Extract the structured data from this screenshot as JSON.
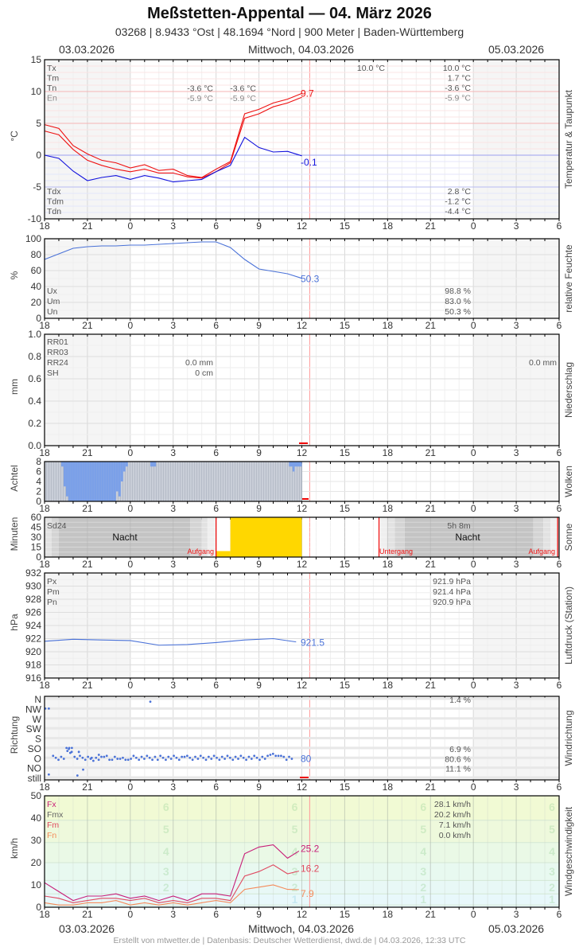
{
  "header": {
    "title": "Meßstetten-Appental  —  04. März 2026",
    "subtitle": "03268  |  8.9433 °Ost  |  48.1694 °Nord  |  900 Meter  |  Baden-Württemberg"
  },
  "date_bar": {
    "left": "03.03.2026",
    "center": "Mittwoch, 04.03.2026",
    "right": "05.03.2026"
  },
  "footer": "Erstellt von mtwetter.de | Datenbasis: Deutscher Wetterdienst, dwd.de | 04.03.2026, 12:33 UTC",
  "x_axis": {
    "ticks": [
      "18",
      "21",
      "0",
      "3",
      "6",
      "9",
      "12",
      "15",
      "18",
      "21",
      "0",
      "3",
      "6"
    ],
    "now_marker_hour": 12.55
  },
  "colors": {
    "temp": "#ee1111",
    "dewpoint": "#1111dd",
    "humidity": "#4a72d8",
    "sun": "#ffd700",
    "cloud": "#7ba0e8",
    "fx": "#c81e78",
    "fm": "#e04a60",
    "fn": "#f58a5a",
    "now": "#ff9999",
    "night_shade": "#f5f5f5"
  },
  "chart_data": [
    {
      "id": "temperature",
      "type": "line",
      "title": "Temperatur & Taupunkt",
      "ylabel": "°C",
      "ylim": [
        -10,
        15
      ],
      "yticks": [
        "15",
        "10",
        "5",
        "0",
        "-5",
        "-10"
      ],
      "x_hours_from_18": [
        0,
        1,
        2,
        3,
        4,
        5,
        6,
        7,
        8,
        9,
        10,
        11,
        12,
        13,
        14,
        15,
        16,
        17,
        18
      ],
      "series": [
        {
          "name": "Tx (upper temp)",
          "values": [
            4.8,
            4.2,
            1.5,
            0.2,
            -0.8,
            -1.2,
            -2.0,
            -1.5,
            -2.4,
            -2.2,
            -3.2,
            -3.5,
            -2.2,
            -1.0,
            6.5,
            7.2,
            8.2,
            8.8,
            9.7
          ]
        },
        {
          "name": "T",
          "values": [
            3.8,
            3.2,
            0.9,
            -0.8,
            -1.6,
            -2.2,
            -2.6,
            -2.2,
            -2.8,
            -2.8,
            -3.4,
            -3.6,
            -2.6,
            -1.2,
            5.8,
            6.5,
            7.6,
            8.2,
            9.1
          ]
        },
        {
          "name": "Td",
          "values": [
            0.0,
            -0.5,
            -2.5,
            -4.0,
            -3.5,
            -3.2,
            -3.8,
            -3.2,
            -3.6,
            -4.2,
            -4.0,
            -3.8,
            -2.6,
            -1.6,
            2.8,
            1.2,
            0.5,
            0.6,
            -0.1
          ]
        }
      ],
      "current_labels": {
        "temp": "9.7",
        "dewpoint": "-0.1"
      },
      "legend_top": [
        "Tx",
        "Tm",
        "Tn",
        "En"
      ],
      "legend_bottom": [
        "Tdx",
        "Tdm",
        "Tdn"
      ],
      "values_day1": {
        "Tn": "-3.6 °C",
        "En": "-5.9 °C"
      },
      "values_day1b": {
        "Tn": "-3.6 °C",
        "En": "-5.9 °C"
      },
      "values_day2_top": "10.0 °C",
      "values_summary": {
        "Tx": "10.0 °C",
        "Tm": "1.7 °C",
        "Tn": "-3.6 °C",
        "En": "-5.9 °C",
        "Tdx": "2.8 °C",
        "Tdm": "-1.2 °C",
        "Tdn": "-4.4 °C"
      },
      "side_label": "Temperatur & Taupunkt"
    },
    {
      "id": "humidity",
      "type": "line",
      "title": "relative Feuchte",
      "ylabel": "%",
      "ylim": [
        0,
        100
      ],
      "yticks": [
        "100",
        "80",
        "60",
        "40",
        "20",
        "0"
      ],
      "x_hours_from_18": [
        0,
        1,
        2,
        3,
        4,
        5,
        6,
        7,
        8,
        9,
        10,
        11,
        12,
        13,
        14,
        15,
        16,
        17,
        18
      ],
      "series": [
        {
          "name": "U",
          "values": [
            74,
            81,
            88,
            90,
            91,
            91,
            92,
            92,
            93,
            94,
            95,
            96,
            96,
            89,
            74,
            62,
            59,
            56,
            50.3
          ]
        }
      ],
      "current_label": "50.3",
      "legend": [
        "Ux",
        "Um",
        "Un"
      ],
      "values_summary": {
        "Ux": "98.8 %",
        "Um": "83.0 %",
        "Un": "50.3 %"
      },
      "side_label": "relative Feuchte"
    },
    {
      "id": "precipitation",
      "type": "bar",
      "title": "Niederschlag",
      "ylabel": "mm",
      "ylim": [
        0,
        1.0
      ],
      "yticks": [
        "1.0",
        "0.8",
        "0.6",
        "0.4",
        "0.2",
        "0.0"
      ],
      "legend": [
        "RR01",
        "RR03",
        "RR24",
        "SH"
      ],
      "values_day1": {
        "RR24": "0.0 mm",
        "SH": "0 cm"
      },
      "values_day2": {
        "RR24": "0.0 mm"
      },
      "side_label": "Niederschlag"
    },
    {
      "id": "clouds",
      "type": "bar",
      "title": "Wolken",
      "ylabel": "Achtel",
      "ylim": [
        0,
        8
      ],
      "yticks": [
        "8",
        "6",
        "4",
        "2",
        "0"
      ],
      "side_label": "Wolken"
    },
    {
      "id": "sunshine",
      "type": "bar",
      "title": "Sonne",
      "ylabel": "Minuten",
      "ylim": [
        0,
        60
      ],
      "yticks": [
        "60",
        "45",
        "30",
        "15",
        "0"
      ],
      "sunshine_minutes_by_hour": [
        {
          "hour": "6-7",
          "minutes": 9
        },
        {
          "hour": "7-12",
          "minutes": 60
        }
      ],
      "labels": {
        "sd24": "Sd24",
        "night1": "Nacht",
        "sunrise1": "Aufgang",
        "sunset": "Untergang",
        "duration": "5h 8m",
        "night2": "Nacht",
        "sunrise2": "Aufgang"
      },
      "side_label": "Sonne"
    },
    {
      "id": "pressure",
      "type": "line",
      "title": "Luftdruck (Station)",
      "ylabel": "hPa",
      "ylim": [
        916,
        932
      ],
      "yticks": [
        "932",
        "930",
        "928",
        "926",
        "924",
        "922",
        "920",
        "918",
        "916"
      ],
      "x_hours_from_18": [
        0,
        2,
        4,
        6,
        8,
        10,
        12,
        14,
        16,
        17.6
      ],
      "series": [
        {
          "name": "P",
          "values": [
            921.6,
            921.9,
            921.8,
            921.7,
            921.0,
            921.1,
            921.4,
            921.8,
            922.0,
            921.5
          ]
        }
      ],
      "current_label": "921.5",
      "legend": [
        "Px",
        "Pm",
        "Pn"
      ],
      "values_summary": {
        "Px": "921.9 hPa",
        "Pm": "921.4 hPa",
        "Pn": "920.9 hPa"
      },
      "side_label": "Luftdruck (Station)"
    },
    {
      "id": "wind_direction",
      "type": "scatter",
      "title": "Windrichtung",
      "ylabel": "Richtung",
      "yticks": [
        "N",
        "NW",
        "W",
        "SW",
        "S",
        "SO",
        "O",
        "NO",
        "still"
      ],
      "current_label": "80",
      "values_summary": {
        "N": "1.4 %",
        "SO": "6.9 %",
        "O": "80.6 %",
        "NO": "11.1 %"
      },
      "side_label": "Windrichtung"
    },
    {
      "id": "wind_speed",
      "type": "line",
      "title": "Windgeschwindigkeit",
      "ylabel": "km/h",
      "ylim": [
        0,
        50
      ],
      "yticks": [
        "50",
        "40",
        "30",
        "20",
        "10",
        "0"
      ],
      "beaufort_labels": [
        "6",
        "5",
        "4",
        "3",
        "2",
        "1"
      ],
      "x_hours_from_18": [
        0,
        1,
        2,
        3,
        4,
        5,
        6,
        7,
        8,
        9,
        10,
        11,
        12,
        13,
        14,
        15,
        16,
        17,
        17.8
      ],
      "series": [
        {
          "name": "Fx",
          "values": [
            11,
            7,
            3,
            5,
            5,
            6,
            4,
            5,
            3,
            5,
            3,
            6,
            6,
            5,
            24,
            27,
            28,
            22,
            25.2
          ]
        },
        {
          "name": "Fm",
          "values": [
            5,
            4,
            2,
            3,
            4,
            4,
            3,
            4,
            2,
            3,
            2,
            4,
            4,
            3,
            14,
            16,
            19,
            15,
            16.2
          ]
        },
        {
          "name": "Fn",
          "values": [
            2,
            1,
            1,
            2,
            2,
            3,
            1,
            2,
            1,
            2,
            1,
            2,
            3,
            2,
            8,
            9,
            10,
            8,
            7.9
          ]
        }
      ],
      "current_labels": {
        "fx": "25.2",
        "fm": "16.2",
        "fn": "7.9"
      },
      "legend": [
        "Fx",
        "Fmx",
        "Fm",
        "Fn"
      ],
      "values_summary": {
        "Fx": "28.1 km/h",
        "Fmx": "20.2 km/h",
        "Fm": "7.1 km/h",
        "Fn": "0.0 km/h"
      },
      "side_label": "Windgeschwindigkeit"
    }
  ]
}
